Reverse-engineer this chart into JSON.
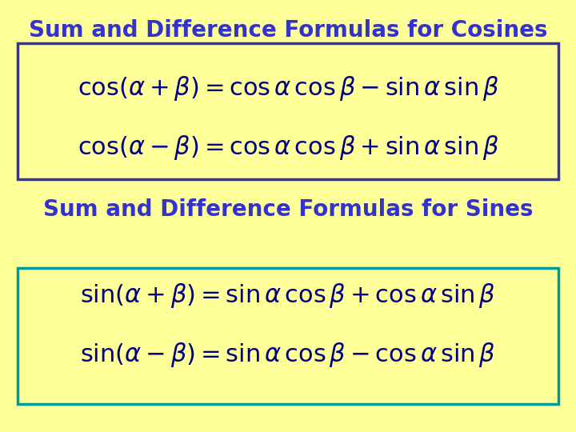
{
  "background_color": "#FFFF99",
  "title_cosines": "Sum and Difference Formulas for Cosines",
  "title_sines": "Sum and Difference Formulas for Sines",
  "title_color": "#3333CC",
  "title_fontsize": 20,
  "formula_color": "#000080",
  "formula_fontsize": 22,
  "box_color_cosines": "#3333AA",
  "box_color_sines": "#009999",
  "cos_formula1": "$\\cos(\\alpha + \\beta) = \\cos\\alpha\\,\\cos\\beta - \\sin\\alpha\\,\\sin\\beta$",
  "cos_formula2": "$\\cos(\\alpha - \\beta) = \\cos\\alpha\\,\\cos\\beta + \\sin\\alpha\\,\\sin\\beta$",
  "sin_formula1": "$\\sin(\\alpha + \\beta) = \\sin\\alpha\\,\\cos\\beta + \\cos\\alpha\\,\\sin\\beta$",
  "sin_formula2": "$\\sin(\\alpha - \\beta) = \\sin\\alpha\\,\\cos\\beta - \\cos\\alpha\\,\\sin\\beta$"
}
